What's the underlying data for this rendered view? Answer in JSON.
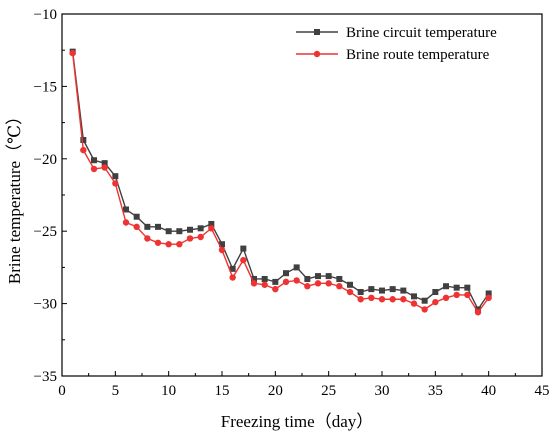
{
  "chart_data": {
    "type": "line",
    "title": "",
    "xlabel": "Freezing time（day）",
    "ylabel": "Brine temperature（℃）",
    "xlim": [
      0,
      45
    ],
    "ylim": [
      -35,
      -10
    ],
    "xticks": [
      0,
      5,
      10,
      15,
      20,
      25,
      30,
      35,
      40,
      45
    ],
    "yticks": [
      -35,
      -30,
      -25,
      -20,
      -15,
      -10
    ],
    "grid": false,
    "legend_position": "top-right",
    "x": [
      1,
      2,
      3,
      4,
      5,
      6,
      7,
      8,
      9,
      10,
      11,
      12,
      13,
      14,
      15,
      16,
      17,
      18,
      19,
      20,
      21,
      22,
      23,
      24,
      25,
      26,
      27,
      28,
      29,
      30,
      31,
      32,
      33,
      34,
      35,
      36,
      37,
      38,
      39,
      40
    ],
    "series": [
      {
        "name": "Brine circuit temperature",
        "color": "#404040",
        "marker": "square",
        "values": [
          -12.6,
          -18.7,
          -20.1,
          -20.3,
          -21.2,
          -23.5,
          -24.0,
          -24.7,
          -24.7,
          -25.0,
          -25.0,
          -24.9,
          -24.8,
          -24.5,
          -25.9,
          -27.6,
          -26.2,
          -28.3,
          -28.3,
          -28.5,
          -27.9,
          -27.5,
          -28.3,
          -28.1,
          -28.1,
          -28.3,
          -28.7,
          -29.2,
          -29.0,
          -29.1,
          -29.0,
          -29.1,
          -29.5,
          -29.8,
          -29.2,
          -28.8,
          -28.9,
          -28.9,
          -30.4,
          -29.3
        ]
      },
      {
        "name": "Brine route temperature",
        "color": "#ee3333",
        "marker": "circle",
        "values": [
          -12.7,
          -19.4,
          -20.7,
          -20.6,
          -21.7,
          -24.4,
          -24.7,
          -25.5,
          -25.8,
          -25.9,
          -25.9,
          -25.5,
          -25.4,
          -24.8,
          -26.3,
          -28.2,
          -27.0,
          -28.6,
          -28.7,
          -29.0,
          -28.5,
          -28.4,
          -28.8,
          -28.6,
          -28.6,
          -28.8,
          -29.2,
          -29.7,
          -29.6,
          -29.7,
          -29.7,
          -29.7,
          -30.0,
          -30.4,
          -29.9,
          -29.6,
          -29.4,
          -29.4,
          -30.6,
          -29.6
        ]
      }
    ]
  }
}
